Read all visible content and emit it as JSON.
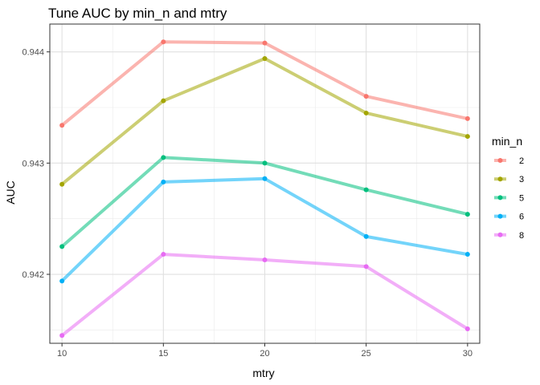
{
  "chart_data": {
    "type": "line",
    "title": "Tune AUC by min_n and mtry",
    "xlabel": "mtry",
    "ylabel": "AUC",
    "x": [
      10,
      15,
      20,
      25,
      30
    ],
    "xlim": [
      9.4,
      30.6
    ],
    "ylim": [
      0.94138,
      0.94425
    ],
    "xticks": [
      10,
      15,
      20,
      25,
      30
    ],
    "xtick_labels": [
      "10",
      "15",
      "20",
      "25",
      "30"
    ],
    "yticks": [
      0.942,
      0.943,
      0.944
    ],
    "ytick_labels": [
      "0.942",
      "0.943",
      "0.944"
    ],
    "grid": true,
    "legend": {
      "title": "min_n",
      "position": "right"
    },
    "series": [
      {
        "name": "2",
        "color": "#F8766D",
        "values": [
          0.94334,
          0.94409,
          0.94408,
          0.9436,
          0.9434
        ]
      },
      {
        "name": "3",
        "color": "#A3A500",
        "values": [
          0.94281,
          0.94356,
          0.94394,
          0.94345,
          0.94324
        ]
      },
      {
        "name": "5",
        "color": "#00BF7D",
        "values": [
          0.94225,
          0.94305,
          0.943,
          0.94276,
          0.94254
        ]
      },
      {
        "name": "6",
        "color": "#00B0F6",
        "values": [
          0.94194,
          0.94283,
          0.94286,
          0.94234,
          0.94218
        ]
      },
      {
        "name": "8",
        "color": "#E76BF3",
        "values": [
          0.94145,
          0.94218,
          0.94213,
          0.94207,
          0.94151
        ]
      }
    ]
  }
}
